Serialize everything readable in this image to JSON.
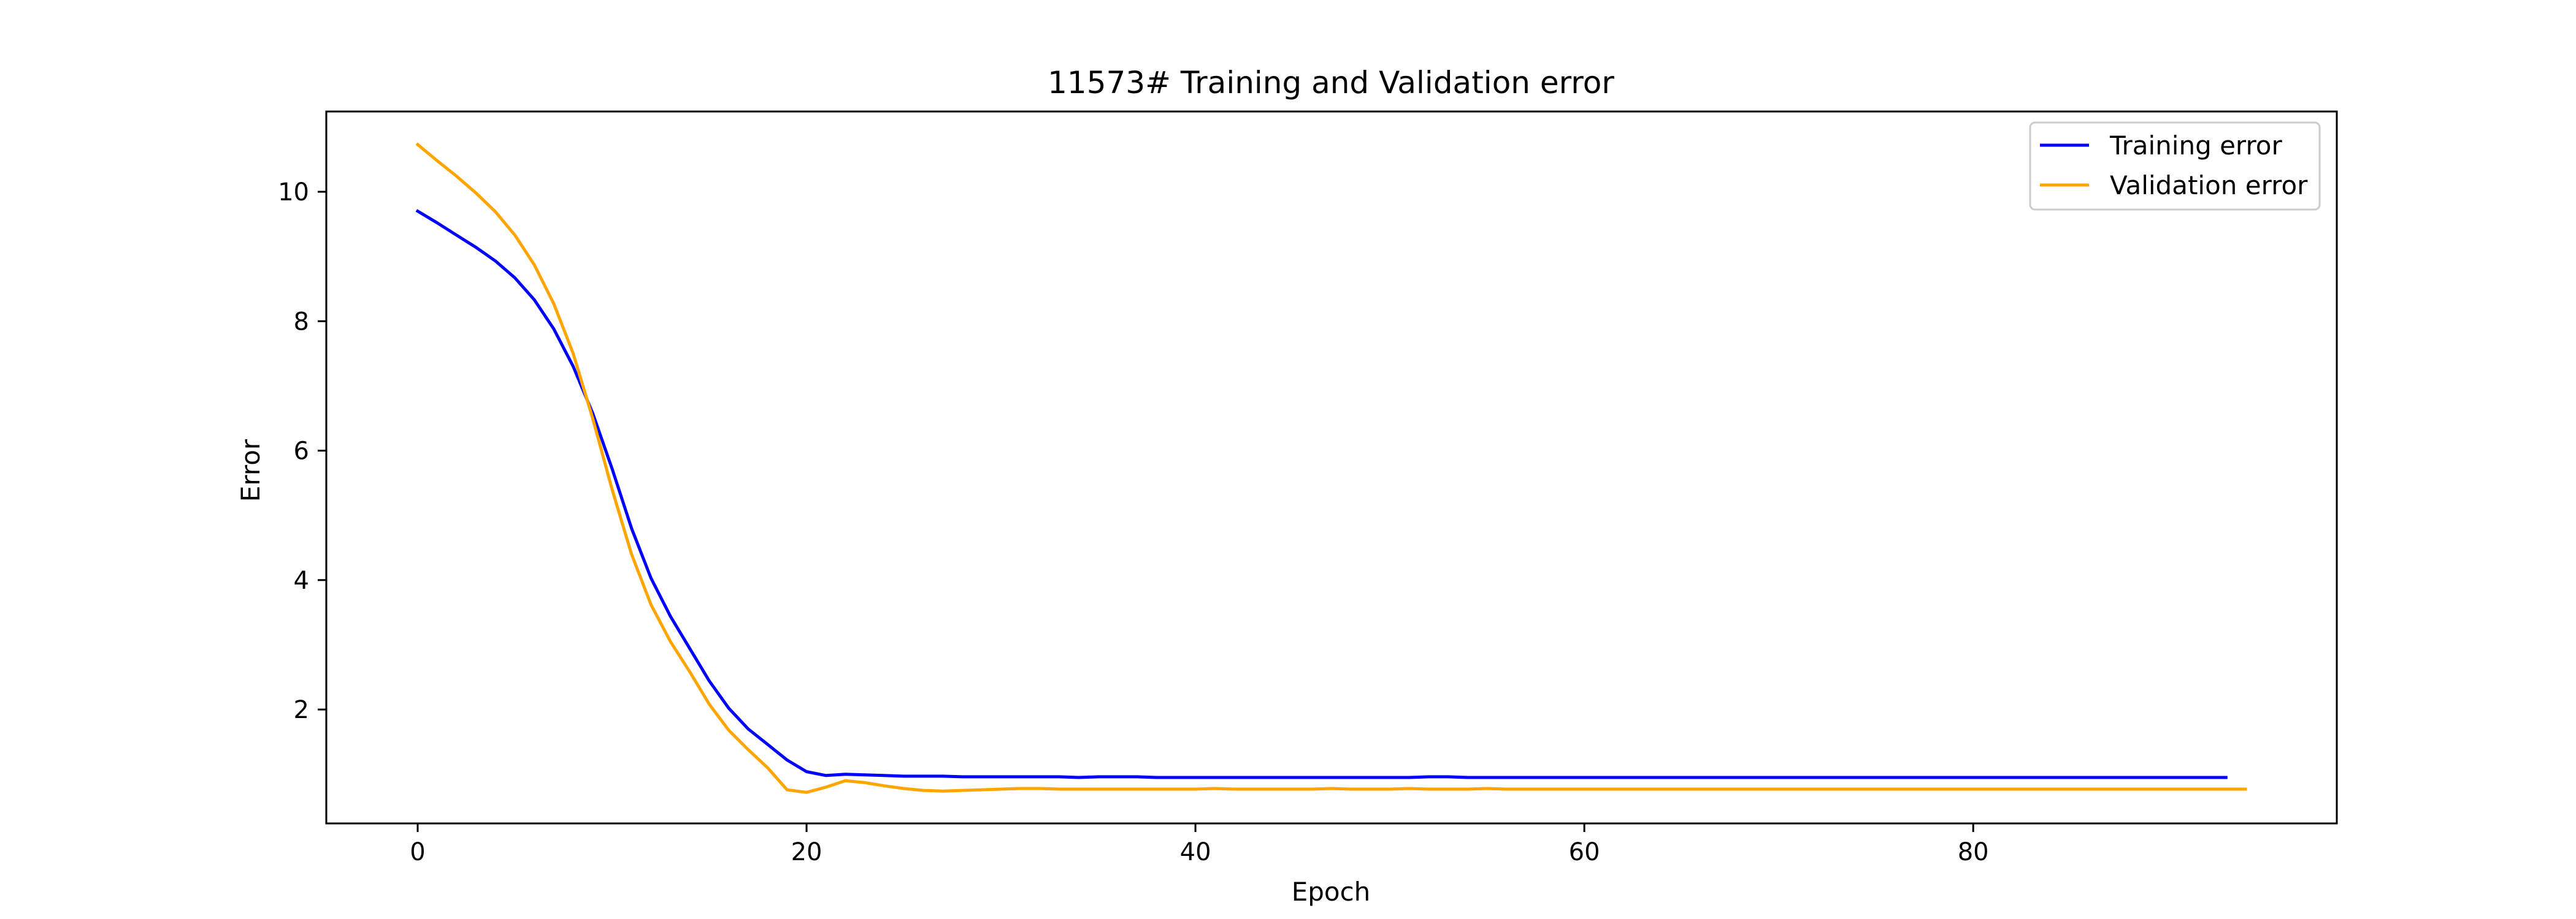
{
  "chart_data": {
    "type": "line",
    "title": "11573# Training and Validation error",
    "xlabel": "Epoch",
    "ylabel": "Error",
    "xlim": [
      -4.7,
      98.7
    ],
    "ylim": [
      0.24,
      11.24
    ],
    "xticks": [
      0,
      20,
      40,
      60,
      80
    ],
    "yticks": [
      2,
      4,
      6,
      8,
      10
    ],
    "grid": false,
    "legend_position": "top-right",
    "series": [
      {
        "name": "Training error",
        "color": "#0000ff",
        "x": [
          0,
          1,
          2,
          3,
          4,
          5,
          6,
          7,
          8,
          9,
          10,
          11,
          12,
          13,
          14,
          15,
          16,
          17,
          18,
          19,
          20,
          21,
          22,
          23,
          24,
          25,
          26,
          27,
          28,
          29,
          30,
          31,
          32,
          33,
          34,
          35,
          36,
          37,
          38,
          39,
          40,
          41,
          42,
          43,
          44,
          45,
          46,
          47,
          48,
          49,
          50,
          51,
          52,
          53,
          54,
          55,
          56,
          57,
          58,
          59,
          60,
          61,
          62,
          63,
          64,
          65,
          66,
          67,
          68,
          69,
          70,
          71,
          72,
          73,
          74,
          75,
          76,
          77,
          78,
          79,
          80,
          81,
          82,
          83,
          84,
          85,
          86,
          87,
          88,
          89,
          90,
          91,
          92,
          93
        ],
        "y": [
          9.7,
          9.52,
          9.33,
          9.14,
          8.93,
          8.67,
          8.33,
          7.88,
          7.3,
          6.58,
          5.72,
          4.8,
          4.03,
          3.44,
          2.94,
          2.44,
          2.02,
          1.7,
          1.46,
          1.22,
          1.04,
          0.98,
          1.0,
          0.99,
          0.98,
          0.97,
          0.97,
          0.97,
          0.96,
          0.96,
          0.96,
          0.96,
          0.96,
          0.96,
          0.95,
          0.96,
          0.96,
          0.96,
          0.95,
          0.95,
          0.95,
          0.95,
          0.95,
          0.95,
          0.95,
          0.95,
          0.95,
          0.95,
          0.95,
          0.95,
          0.95,
          0.95,
          0.96,
          0.96,
          0.95,
          0.95,
          0.95,
          0.95,
          0.95,
          0.95,
          0.95,
          0.95,
          0.95,
          0.95,
          0.95,
          0.95,
          0.95,
          0.95,
          0.95,
          0.95,
          0.95,
          0.95,
          0.95,
          0.95,
          0.95,
          0.95,
          0.95,
          0.95,
          0.95,
          0.95,
          0.95,
          0.95,
          0.95,
          0.95,
          0.95,
          0.95,
          0.95,
          0.95,
          0.95,
          0.95,
          0.95,
          0.95,
          0.95,
          0.95
        ]
      },
      {
        "name": "Validation error",
        "color": "#ffa500",
        "x": [
          0,
          1,
          2,
          3,
          4,
          5,
          6,
          7,
          8,
          9,
          10,
          11,
          12,
          13,
          14,
          15,
          16,
          17,
          18,
          19,
          20,
          21,
          22,
          23,
          24,
          25,
          26,
          27,
          28,
          29,
          30,
          31,
          32,
          33,
          34,
          35,
          36,
          37,
          38,
          39,
          40,
          41,
          42,
          43,
          44,
          45,
          46,
          47,
          48,
          49,
          50,
          51,
          52,
          53,
          54,
          55,
          56,
          57,
          58,
          59,
          60,
          61,
          62,
          63,
          64,
          65,
          66,
          67,
          68,
          69,
          70,
          71,
          72,
          73,
          74,
          75,
          76,
          77,
          78,
          79,
          80,
          81,
          82,
          83,
          84,
          85,
          86,
          87,
          88,
          89,
          90,
          91,
          92,
          93,
          94
        ],
        "y": [
          10.73,
          10.48,
          10.24,
          9.98,
          9.69,
          9.33,
          8.87,
          8.27,
          7.5,
          6.5,
          5.4,
          4.4,
          3.62,
          3.05,
          2.58,
          2.08,
          1.68,
          1.38,
          1.1,
          0.76,
          0.72,
          0.8,
          0.9,
          0.87,
          0.82,
          0.78,
          0.75,
          0.74,
          0.75,
          0.76,
          0.77,
          0.78,
          0.78,
          0.77,
          0.77,
          0.77,
          0.77,
          0.77,
          0.77,
          0.77,
          0.77,
          0.78,
          0.77,
          0.77,
          0.77,
          0.77,
          0.77,
          0.78,
          0.77,
          0.77,
          0.77,
          0.78,
          0.77,
          0.77,
          0.77,
          0.78,
          0.77,
          0.77,
          0.77,
          0.77,
          0.77,
          0.77,
          0.77,
          0.77,
          0.77,
          0.77,
          0.77,
          0.77,
          0.77,
          0.77,
          0.77,
          0.77,
          0.77,
          0.77,
          0.77,
          0.77,
          0.77,
          0.77,
          0.77,
          0.77,
          0.77,
          0.77,
          0.77,
          0.77,
          0.77,
          0.77,
          0.77,
          0.77,
          0.77,
          0.77,
          0.77,
          0.77,
          0.77,
          0.77,
          0.77
        ]
      }
    ]
  }
}
